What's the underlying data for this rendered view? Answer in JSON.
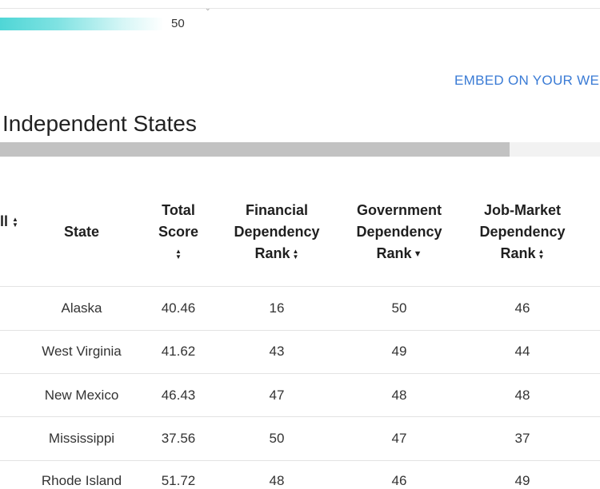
{
  "legend": {
    "max_label": "50",
    "colors": {
      "start": "#4fd6d6",
      "end": "#ffffff"
    }
  },
  "embed_label": "EMBED ON YOUR WE",
  "section_title": "Independent States",
  "scrollbar": {
    "position_fraction": 0.85
  },
  "table": {
    "partial_header": "ll",
    "columns": [
      {
        "lines": [
          "",
          "State",
          ""
        ],
        "sort": "none"
      },
      {
        "lines": [
          "Total",
          "Score",
          ""
        ],
        "sort": "both"
      },
      {
        "lines": [
          "Financial",
          "Dependency",
          "Rank"
        ],
        "sort": "both"
      },
      {
        "lines": [
          "Government",
          "Dependency",
          "Rank"
        ],
        "sort": "desc"
      },
      {
        "lines": [
          "Job-Market",
          "Dependency",
          "Rank"
        ],
        "sort": "both"
      }
    ],
    "rows": [
      {
        "state": "Alaska",
        "total": "40.46",
        "financial": "16",
        "government": "50",
        "job": "46"
      },
      {
        "state": "West Virginia",
        "total": "41.62",
        "financial": "43",
        "government": "49",
        "job": "44"
      },
      {
        "state": "New Mexico",
        "total": "46.43",
        "financial": "47",
        "government": "48",
        "job": "48"
      },
      {
        "state": "Mississippi",
        "total": "37.56",
        "financial": "50",
        "government": "47",
        "job": "37"
      },
      {
        "state": "Rhode Island",
        "total": "51.72",
        "financial": "48",
        "government": "46",
        "job": "49"
      }
    ]
  }
}
